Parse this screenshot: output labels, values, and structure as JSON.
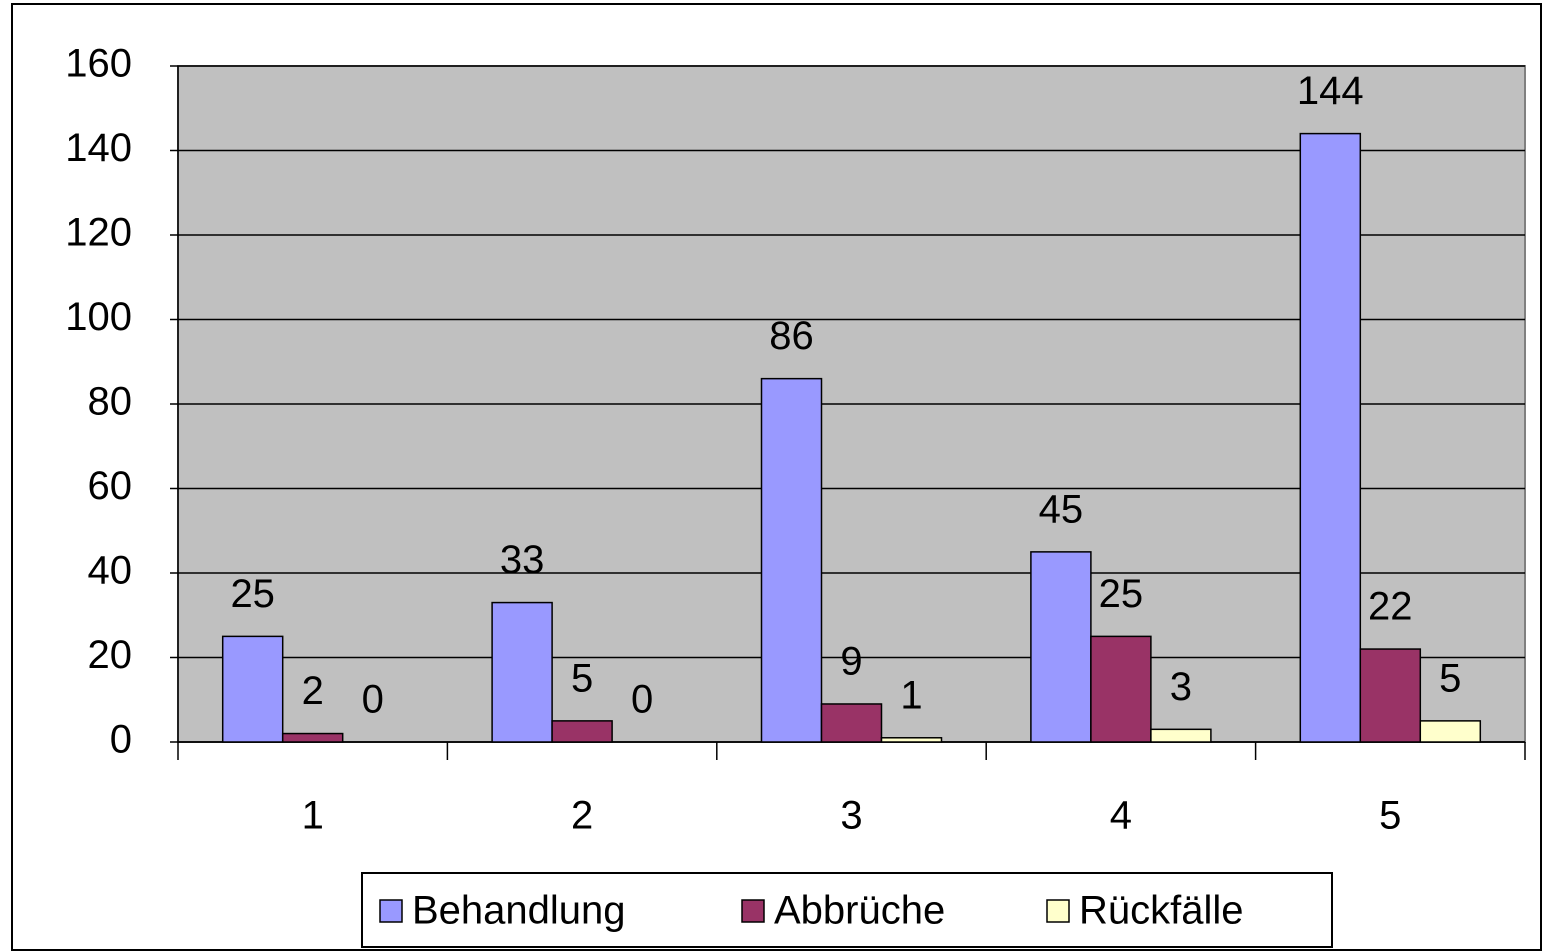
{
  "chart_data": {
    "type": "bar",
    "categories": [
      "1",
      "2",
      "3",
      "4",
      "5"
    ],
    "series": [
      {
        "name": "Behandlung",
        "color": "#9999ff",
        "values": [
          25,
          33,
          86,
          45,
          144
        ]
      },
      {
        "name": "Abbrüche",
        "color": "#993366",
        "values": [
          2,
          5,
          9,
          25,
          22
        ]
      },
      {
        "name": "Rückfälle",
        "color": "#ffffcc",
        "values": [
          0,
          0,
          1,
          3,
          5
        ]
      }
    ],
    "ylim": [
      0,
      160
    ],
    "yticks": [
      0,
      20,
      40,
      60,
      80,
      100,
      120,
      140,
      160
    ],
    "grid": true,
    "legend": "bottom",
    "plot_background": "#c0c0c0"
  }
}
